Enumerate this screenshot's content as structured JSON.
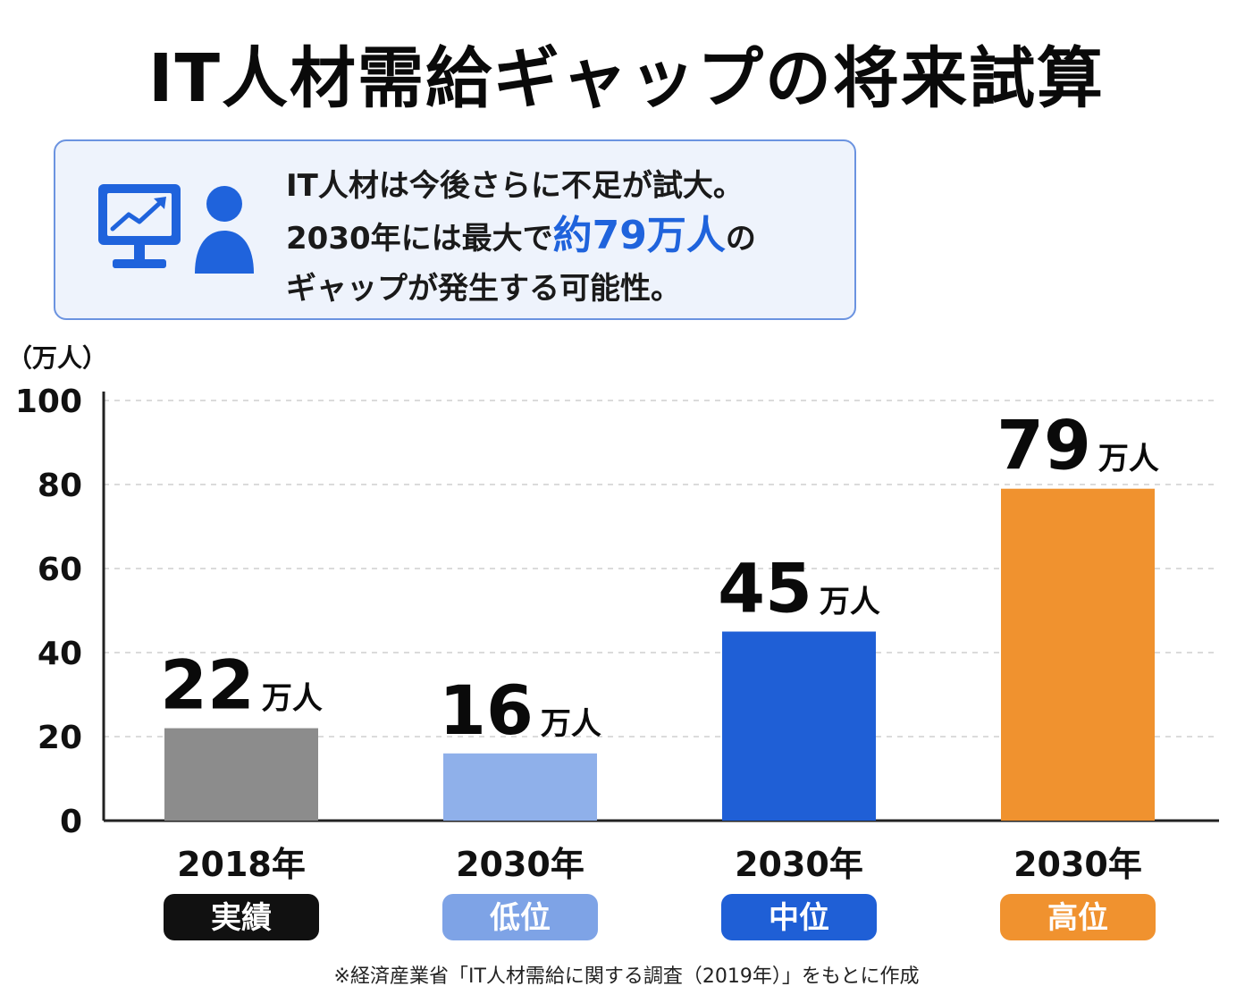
{
  "title": "IT人材需給ギャップの将来試算",
  "callout": {
    "line1": "IT人材は今後さらに不足が試大。",
    "line2_pre": "2030年には最大で",
    "line2_highlight": "約79万人",
    "line2_post": "の",
    "line3": "ギャップが発生する可能性。",
    "icons": [
      "monitor-chart-icon",
      "person-icon"
    ],
    "highlight_color": "#1f63dc"
  },
  "chart_data": {
    "type": "bar",
    "ylabel": "（万人）",
    "ylim": [
      0,
      100
    ],
    "yticks": [
      0,
      20,
      40,
      60,
      80,
      100
    ],
    "grid": true,
    "categories": [
      "2018年",
      "2030年",
      "2030年",
      "2030年"
    ],
    "scenario_labels": [
      "実績",
      "低位",
      "中位",
      "高位"
    ],
    "values": [
      22,
      16,
      45,
      79
    ],
    "value_unit": "万人",
    "bar_colors": [
      "#8c8c8c",
      "#8fb0ea",
      "#1f5fd6",
      "#f0922f"
    ],
    "badge_colors": [
      "#111111",
      "#7ea3e6",
      "#1f5fd6",
      "#f0922f"
    ]
  },
  "footnote": "※経済産業省「IT人材需給に関する調査（2019年）」をもとに作成"
}
